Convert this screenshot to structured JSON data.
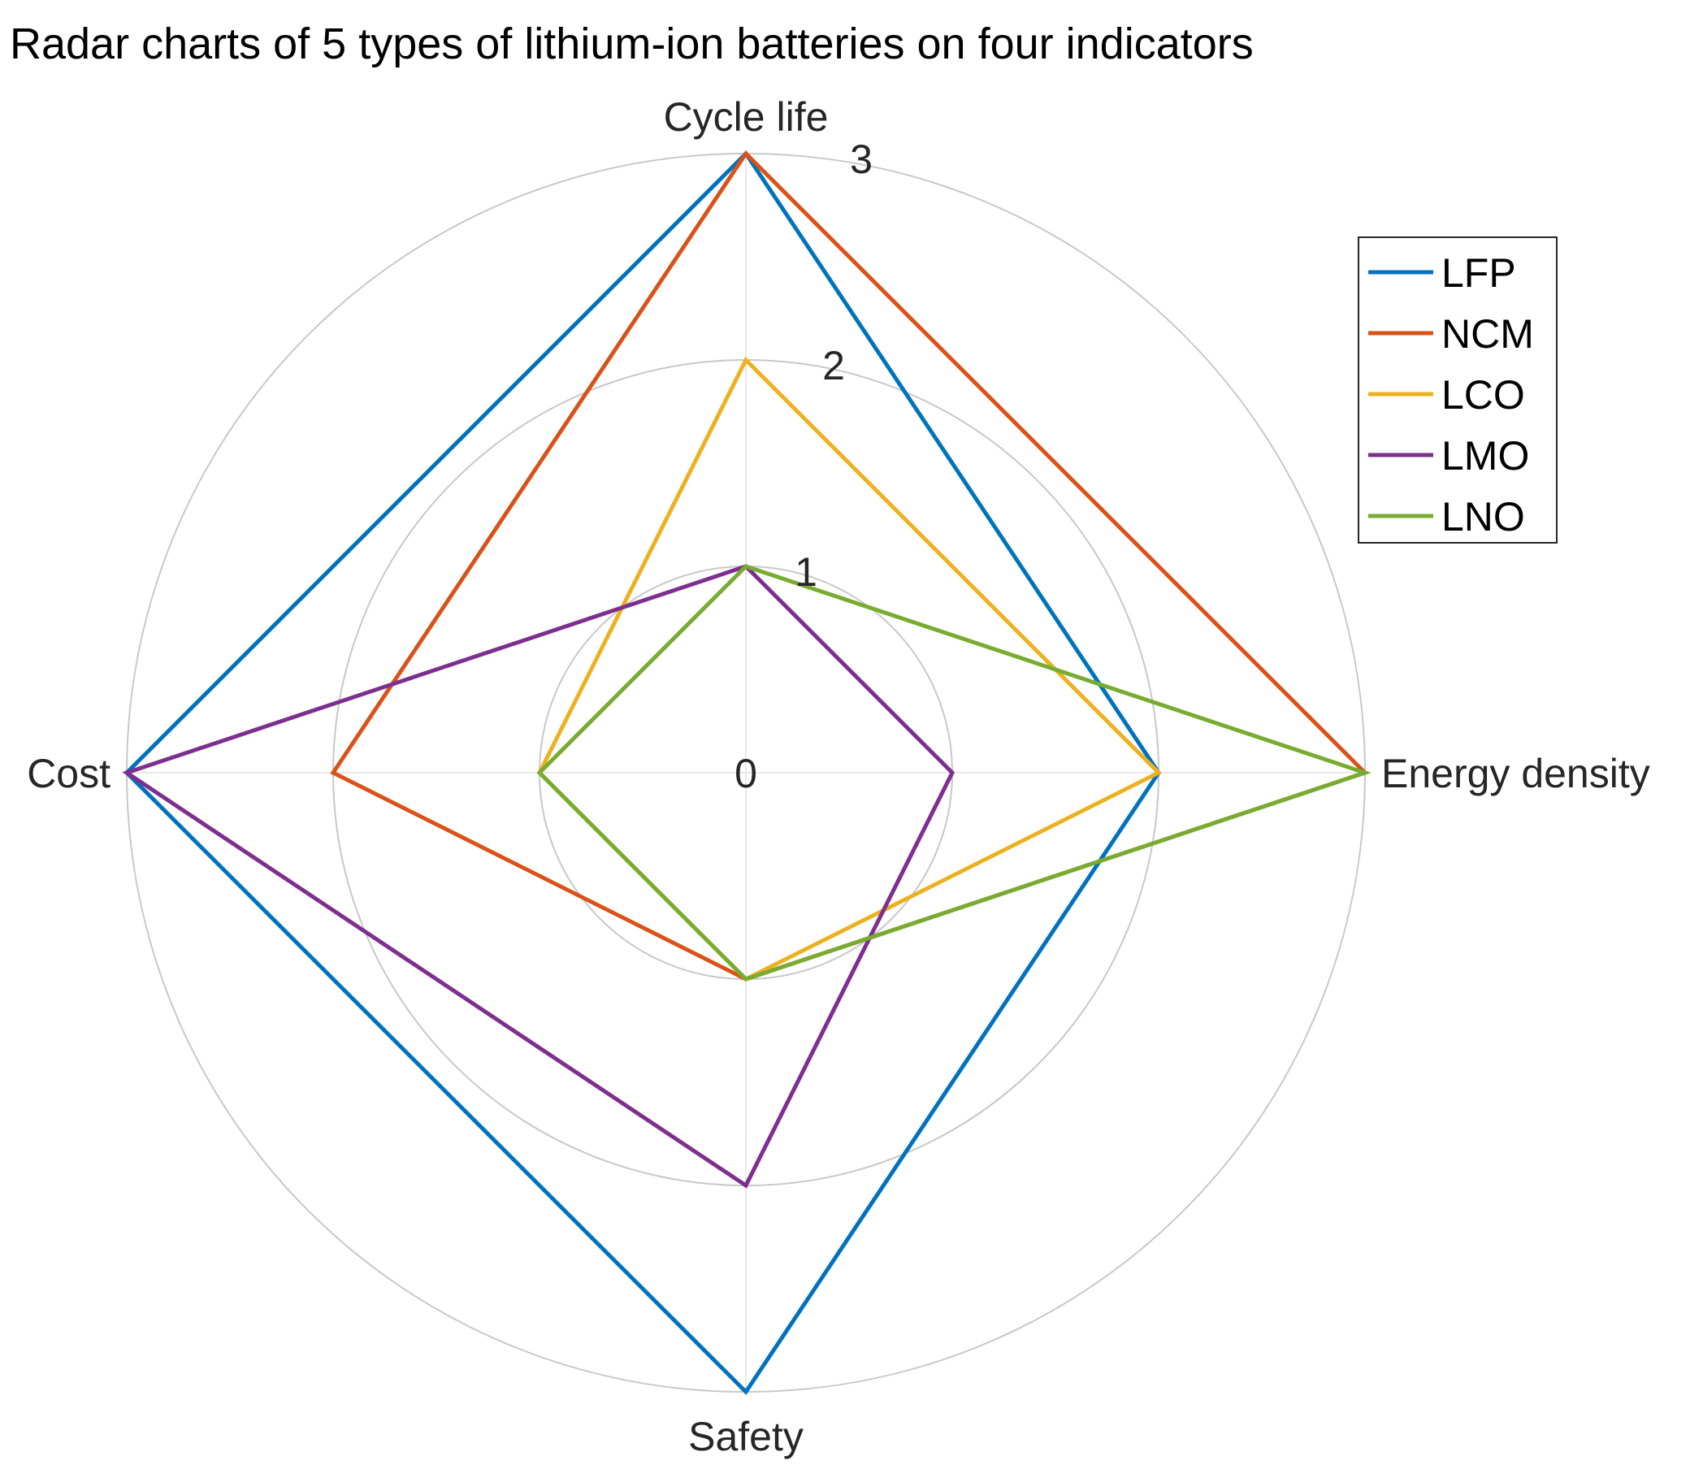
{
  "chart_data": {
    "type": "radar",
    "title": "Radar charts of 5 types of lithium-ion batteries on four indicators",
    "axes": [
      "Cycle life",
      "Energy density",
      "Safety",
      "Cost"
    ],
    "rlim": [
      0,
      3
    ],
    "rticks": [
      "0",
      "1",
      "2",
      "3"
    ],
    "grid": true,
    "legend_position": "top-right",
    "series": [
      {
        "name": "LFP",
        "color": "#0072BD",
        "values": [
          3,
          2,
          3,
          3
        ]
      },
      {
        "name": "NCM",
        "color": "#D95319",
        "values": [
          3,
          3,
          1,
          2
        ]
      },
      {
        "name": "LCO",
        "color": "#EDB120",
        "values": [
          2,
          2,
          1,
          1
        ]
      },
      {
        "name": "LMO",
        "color": "#7E2F8E",
        "values": [
          1,
          1,
          2,
          3
        ]
      },
      {
        "name": "LNO",
        "color": "#77AC30",
        "values": [
          1,
          3,
          1,
          1
        ]
      }
    ]
  }
}
